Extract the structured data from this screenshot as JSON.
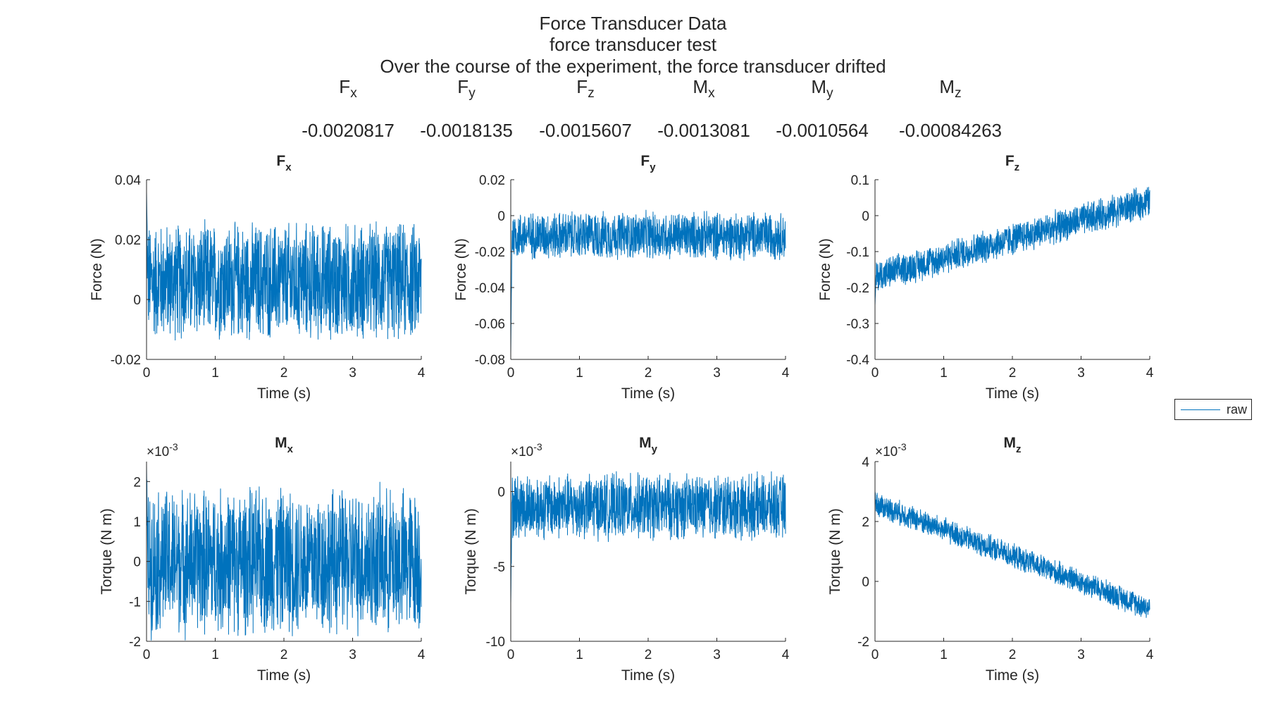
{
  "figure": {
    "title_lines": [
      "Force Transducer Data",
      "force  transducer  test",
      "Over the course of the experiment, the force transducer drifted"
    ],
    "stats": [
      {
        "label": "F",
        "sub": "x",
        "value": "-0.0020817"
      },
      {
        "label": "F",
        "sub": "y",
        "value": "-0.0018135"
      },
      {
        "label": "F",
        "sub": "z",
        "value": "-0.0015607"
      },
      {
        "label": "M",
        "sub": "x",
        "value": "-0.0013081"
      },
      {
        "label": "M",
        "sub": "y",
        "value": "-0.0010564"
      },
      {
        "label": "M",
        "sub": "z",
        "value": "-0.00084263"
      }
    ],
    "legend": {
      "entries": [
        "raw"
      ]
    },
    "line_color": "#0072BD"
  },
  "chart_data": [
    {
      "type": "line",
      "title": "F",
      "title_sub": "x",
      "xlabel": "Time (s)",
      "ylabel": "Force (N)",
      "xlim": [
        0,
        4
      ],
      "ylim": [
        -0.02,
        0.04
      ],
      "xticks": [
        "0",
        "1",
        "2",
        "3",
        "4"
      ],
      "yticks": [
        "-0.02",
        "0",
        "0.02",
        "0.04"
      ],
      "exponent": "",
      "series": [
        {
          "name": "raw",
          "start": 0.036,
          "mean_start": 0.006,
          "mean_end": 0.006,
          "noise_low": -0.016,
          "noise_high": 0.027
        }
      ]
    },
    {
      "type": "line",
      "title": "F",
      "title_sub": "y",
      "xlabel": "Time (s)",
      "ylabel": "Force (N)",
      "xlim": [
        0,
        4
      ],
      "ylim": [
        -0.08,
        0.02
      ],
      "xticks": [
        "0",
        "1",
        "2",
        "3",
        "4"
      ],
      "yticks": [
        "-0.08",
        "-0.06",
        "-0.04",
        "-0.02",
        "0",
        "0.02"
      ],
      "exponent": "",
      "series": [
        {
          "name": "raw",
          "start": -0.077,
          "mean_start": -0.011,
          "mean_end": -0.011,
          "noise_low": -0.025,
          "noise_high": 0.004
        }
      ]
    },
    {
      "type": "line",
      "title": "F",
      "title_sub": "z",
      "xlabel": "Time (s)",
      "ylabel": "Force (N)",
      "xlim": [
        0,
        4
      ],
      "ylim": [
        -0.4,
        0.1
      ],
      "xticks": [
        "0",
        "1",
        "2",
        "3",
        "4"
      ],
      "yticks": [
        "-0.4",
        "-0.3",
        "-0.2",
        "-0.1",
        "0",
        "0.1"
      ],
      "exponent": "",
      "series": [
        {
          "name": "raw",
          "start": -0.25,
          "mean_start": -0.17,
          "mean_end": 0.04,
          "noise_low": -0.05,
          "noise_high": 0.05
        }
      ]
    },
    {
      "type": "line",
      "title": "M",
      "title_sub": "x",
      "xlabel": "Time (s)",
      "ylabel": "Torque (N m)",
      "xlim": [
        0,
        4
      ],
      "ylim": [
        -2,
        2.5
      ],
      "xticks": [
        "0",
        "1",
        "2",
        "3",
        "4"
      ],
      "yticks": [
        "-2",
        "-1",
        "0",
        "1",
        "2"
      ],
      "exponent": "-3",
      "series": [
        {
          "name": "raw",
          "start": 2.4,
          "mean_start": 0.0,
          "mean_end": 0.0,
          "noise_low": -1.9,
          "noise_high": 2.1
        }
      ]
    },
    {
      "type": "line",
      "title": "M",
      "title_sub": "y",
      "xlabel": "Time (s)",
      "ylabel": "Torque (N m)",
      "xlim": [
        0,
        4
      ],
      "ylim": [
        -10,
        2
      ],
      "xticks": [
        "0",
        "1",
        "2",
        "3",
        "4"
      ],
      "yticks": [
        "-10",
        "-5",
        "0"
      ],
      "exponent": "-3",
      "series": [
        {
          "name": "raw",
          "start": -7.5,
          "mean_start": -1.0,
          "mean_end": -1.0,
          "noise_low": -3.2,
          "noise_high": 1.6
        }
      ]
    },
    {
      "type": "line",
      "title": "M",
      "title_sub": "z",
      "xlabel": "Time (s)",
      "ylabel": "Torque (N m)",
      "xlim": [
        0,
        4
      ],
      "ylim": [
        -2,
        4
      ],
      "xticks": [
        "0",
        "1",
        "2",
        "3",
        "4"
      ],
      "yticks": [
        "-2",
        "0",
        "2",
        "4"
      ],
      "exponent": "-3",
      "series": [
        {
          "name": "raw",
          "start": 3.0,
          "mean_start": 2.6,
          "mean_end": -0.9,
          "noise_low": -0.45,
          "noise_high": 0.45
        }
      ]
    }
  ]
}
